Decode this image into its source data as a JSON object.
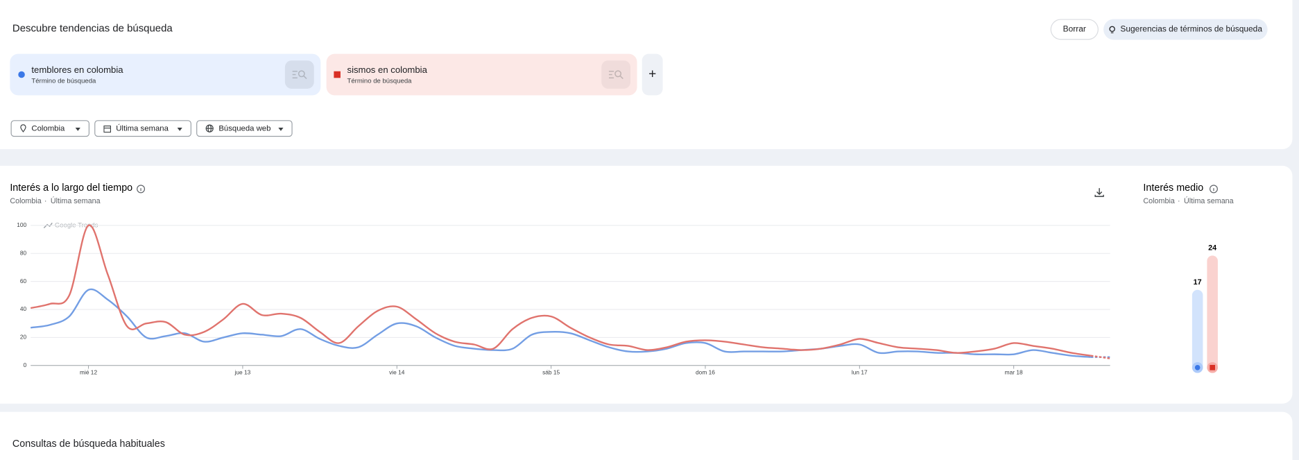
{
  "page": {
    "header": {
      "title": "Descubre tendencias de búsqueda",
      "clear_button": "Borrar",
      "suggestions_button": "Sugerencias de términos de búsqueda"
    },
    "terms": [
      {
        "name": "temblores en colombia",
        "kind": "Término de búsqueda"
      },
      {
        "name": "sismos en colombia",
        "kind": "Término de búsqueda"
      }
    ],
    "add_button": "+",
    "filters": [
      "Colombia",
      "Última semana",
      "Búsqueda web"
    ],
    "bottom_section": "Consultas de búsqueda habituales"
  },
  "chart_data": [
    {
      "type": "line",
      "title": "Interés a lo largo del tiempo",
      "subtitle": [
        "Colombia",
        "Última semana"
      ],
      "watermark": "Google Trends",
      "x": [
        0,
        1,
        2,
        3,
        4,
        5,
        6,
        7,
        8,
        9,
        10,
        11,
        12,
        13,
        14,
        15,
        16,
        17,
        18,
        19,
        20,
        21,
        22,
        23,
        24,
        25,
        26,
        27,
        28,
        29,
        30,
        31,
        32,
        33,
        34,
        35,
        36,
        37,
        38,
        39,
        40,
        41,
        42,
        43,
        44,
        45,
        46,
        47,
        48,
        49,
        50,
        51,
        52,
        53,
        54,
        55,
        56
      ],
      "xlim": [
        0,
        56
      ],
      "xticks": [
        {
          "value": 3,
          "label": "mié 12"
        },
        {
          "value": 11,
          "label": "jue 13"
        },
        {
          "value": 19,
          "label": "vie 14"
        },
        {
          "value": 27,
          "label": "sáb 15"
        },
        {
          "value": 35,
          "label": "dom 16"
        },
        {
          "value": 43,
          "label": "lun 17"
        },
        {
          "value": 51,
          "label": "mar 18"
        }
      ],
      "ylim": [
        0,
        100
      ],
      "yticks": [
        0,
        20,
        40,
        60,
        80,
        100
      ],
      "grid": true,
      "series": [
        {
          "name": "temblores en colombia",
          "color": "#739ee4",
          "values": [
            27,
            29,
            35,
            54,
            47,
            35,
            20,
            21,
            23,
            17,
            20,
            23,
            22,
            21,
            26,
            19,
            14,
            13,
            22,
            30,
            28,
            20,
            14,
            12,
            11,
            12,
            22,
            24,
            23,
            18,
            13,
            10,
            10,
            12,
            16,
            16,
            10,
            10,
            10,
            10,
            11,
            12,
            14,
            15,
            9,
            10,
            10,
            9,
            9,
            8,
            8,
            8,
            11,
            9,
            7,
            6,
            6
          ]
        },
        {
          "name": "sismos en colombia",
          "color": "#e0736d",
          "values": [
            41,
            44,
            50,
            100,
            65,
            28,
            30,
            31,
            22,
            24,
            33,
            44,
            36,
            37,
            34,
            24,
            16,
            28,
            39,
            42,
            33,
            23,
            17,
            15,
            12,
            26,
            34,
            35,
            27,
            20,
            15,
            14,
            11,
            13,
            17,
            18,
            17,
            15,
            13,
            12,
            11,
            12,
            15,
            19,
            16,
            13,
            12,
            11,
            9,
            10,
            12,
            16,
            14,
            12,
            9,
            7,
            5
          ]
        }
      ]
    },
    {
      "type": "bar",
      "title": "Interés medio",
      "subtitle": [
        "Colombia",
        "Última semana"
      ],
      "values": [
        17,
        24
      ],
      "colors": [
        "#d2e3fc",
        "#fad2cf"
      ]
    }
  ]
}
